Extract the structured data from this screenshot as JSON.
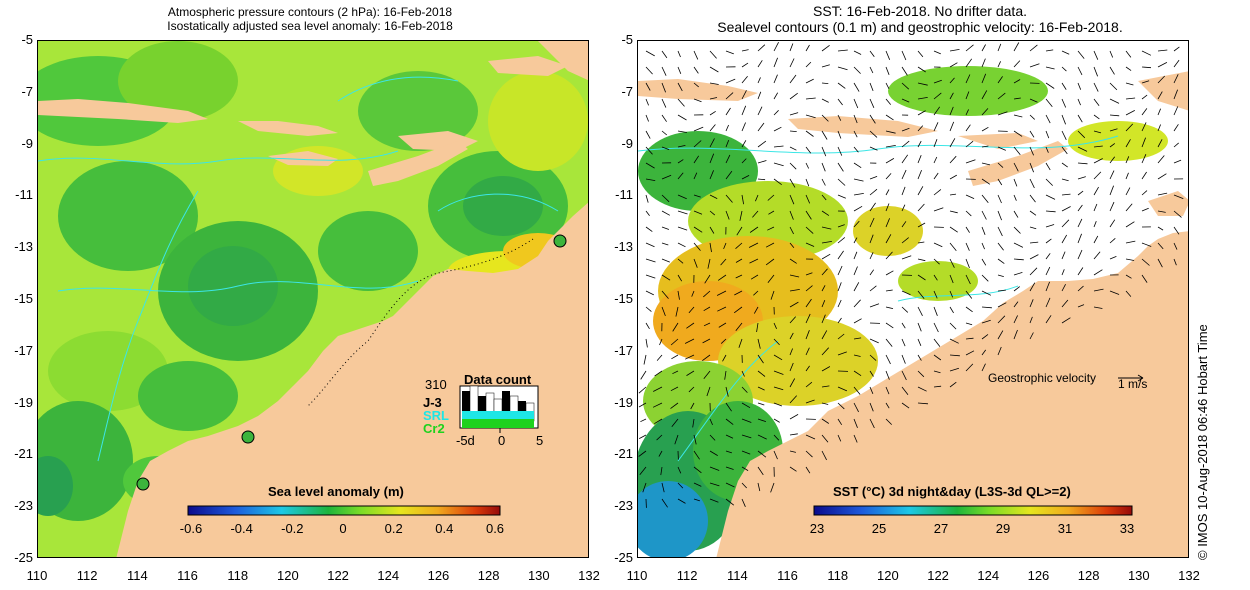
{
  "left": {
    "title_line1": "Atmospheric pressure contours (2 hPa): 16-Feb-2018",
    "title_line2": "Isostatically adjusted sea level anomaly: 16-Feb-2018",
    "colorbar": {
      "title": "Sea level anomaly (m)",
      "ticks": [
        "-0.6",
        "-0.4",
        "-0.2",
        "0",
        "0.2",
        "0.4",
        "0.6"
      ],
      "range": [
        -0.6,
        0.6
      ],
      "colors": [
        "#0a0a8c",
        "#1e5adc",
        "#1ec8e6",
        "#1eb43c",
        "#78dc28",
        "#e6e61e",
        "#f0aa1e",
        "#dc3c0a",
        "#960a0a"
      ]
    },
    "data_count": {
      "title": "Data count",
      "max_label": "310",
      "satellites": [
        {
          "name": "J-3",
          "color": "#000000"
        },
        {
          "name": "SRL",
          "color": "#1ee6e6"
        },
        {
          "name": "Cr2",
          "color": "#1ed21e"
        }
      ],
      "xticks": [
        "-5d",
        "0",
        "5"
      ]
    },
    "tide_gauges": [
      {
        "lon": 130.8,
        "lat": -12.5
      },
      {
        "lon": 118.3,
        "lat": -20.3
      },
      {
        "lon": 114.1,
        "lat": -22.0
      }
    ]
  },
  "right": {
    "title_line1": "SST: 16-Feb-2018. No drifter data.",
    "title_line2": "Sealevel contours (0.1 m) and geostrophic velocity: 16-Feb-2018.",
    "colorbar": {
      "title": "SST (°C) 3d night&day (L3S-3d QL>=2)",
      "ticks": [
        "23",
        "25",
        "27",
        "29",
        "31",
        "33"
      ],
      "range": [
        23,
        33
      ],
      "colors": [
        "#0a0a8c",
        "#1e5adc",
        "#1ec8e6",
        "#1eb43c",
        "#78dc28",
        "#e6e61e",
        "#f0aa1e",
        "#dc3c0a",
        "#960a0a"
      ]
    },
    "velocity_label": "Geostrophic velocity",
    "velocity_scale_label": "1 m/s"
  },
  "axes": {
    "lat_ticks": [
      "-5",
      "-7",
      "-9",
      "-11",
      "-13",
      "-15",
      "-17",
      "-19",
      "-21",
      "-23",
      "-25"
    ],
    "lon_ticks": [
      "110",
      "112",
      "114",
      "116",
      "118",
      "120",
      "122",
      "124",
      "126",
      "128",
      "130",
      "132"
    ],
    "lat_range": [
      -25,
      -5
    ],
    "lon_range": [
      110,
      132
    ]
  },
  "copyright": "©  IMOS 10-Aug-2018 06:46 Hobart Time",
  "colors": {
    "land": "#f7c99b",
    "contour": "#3ce6e6"
  }
}
